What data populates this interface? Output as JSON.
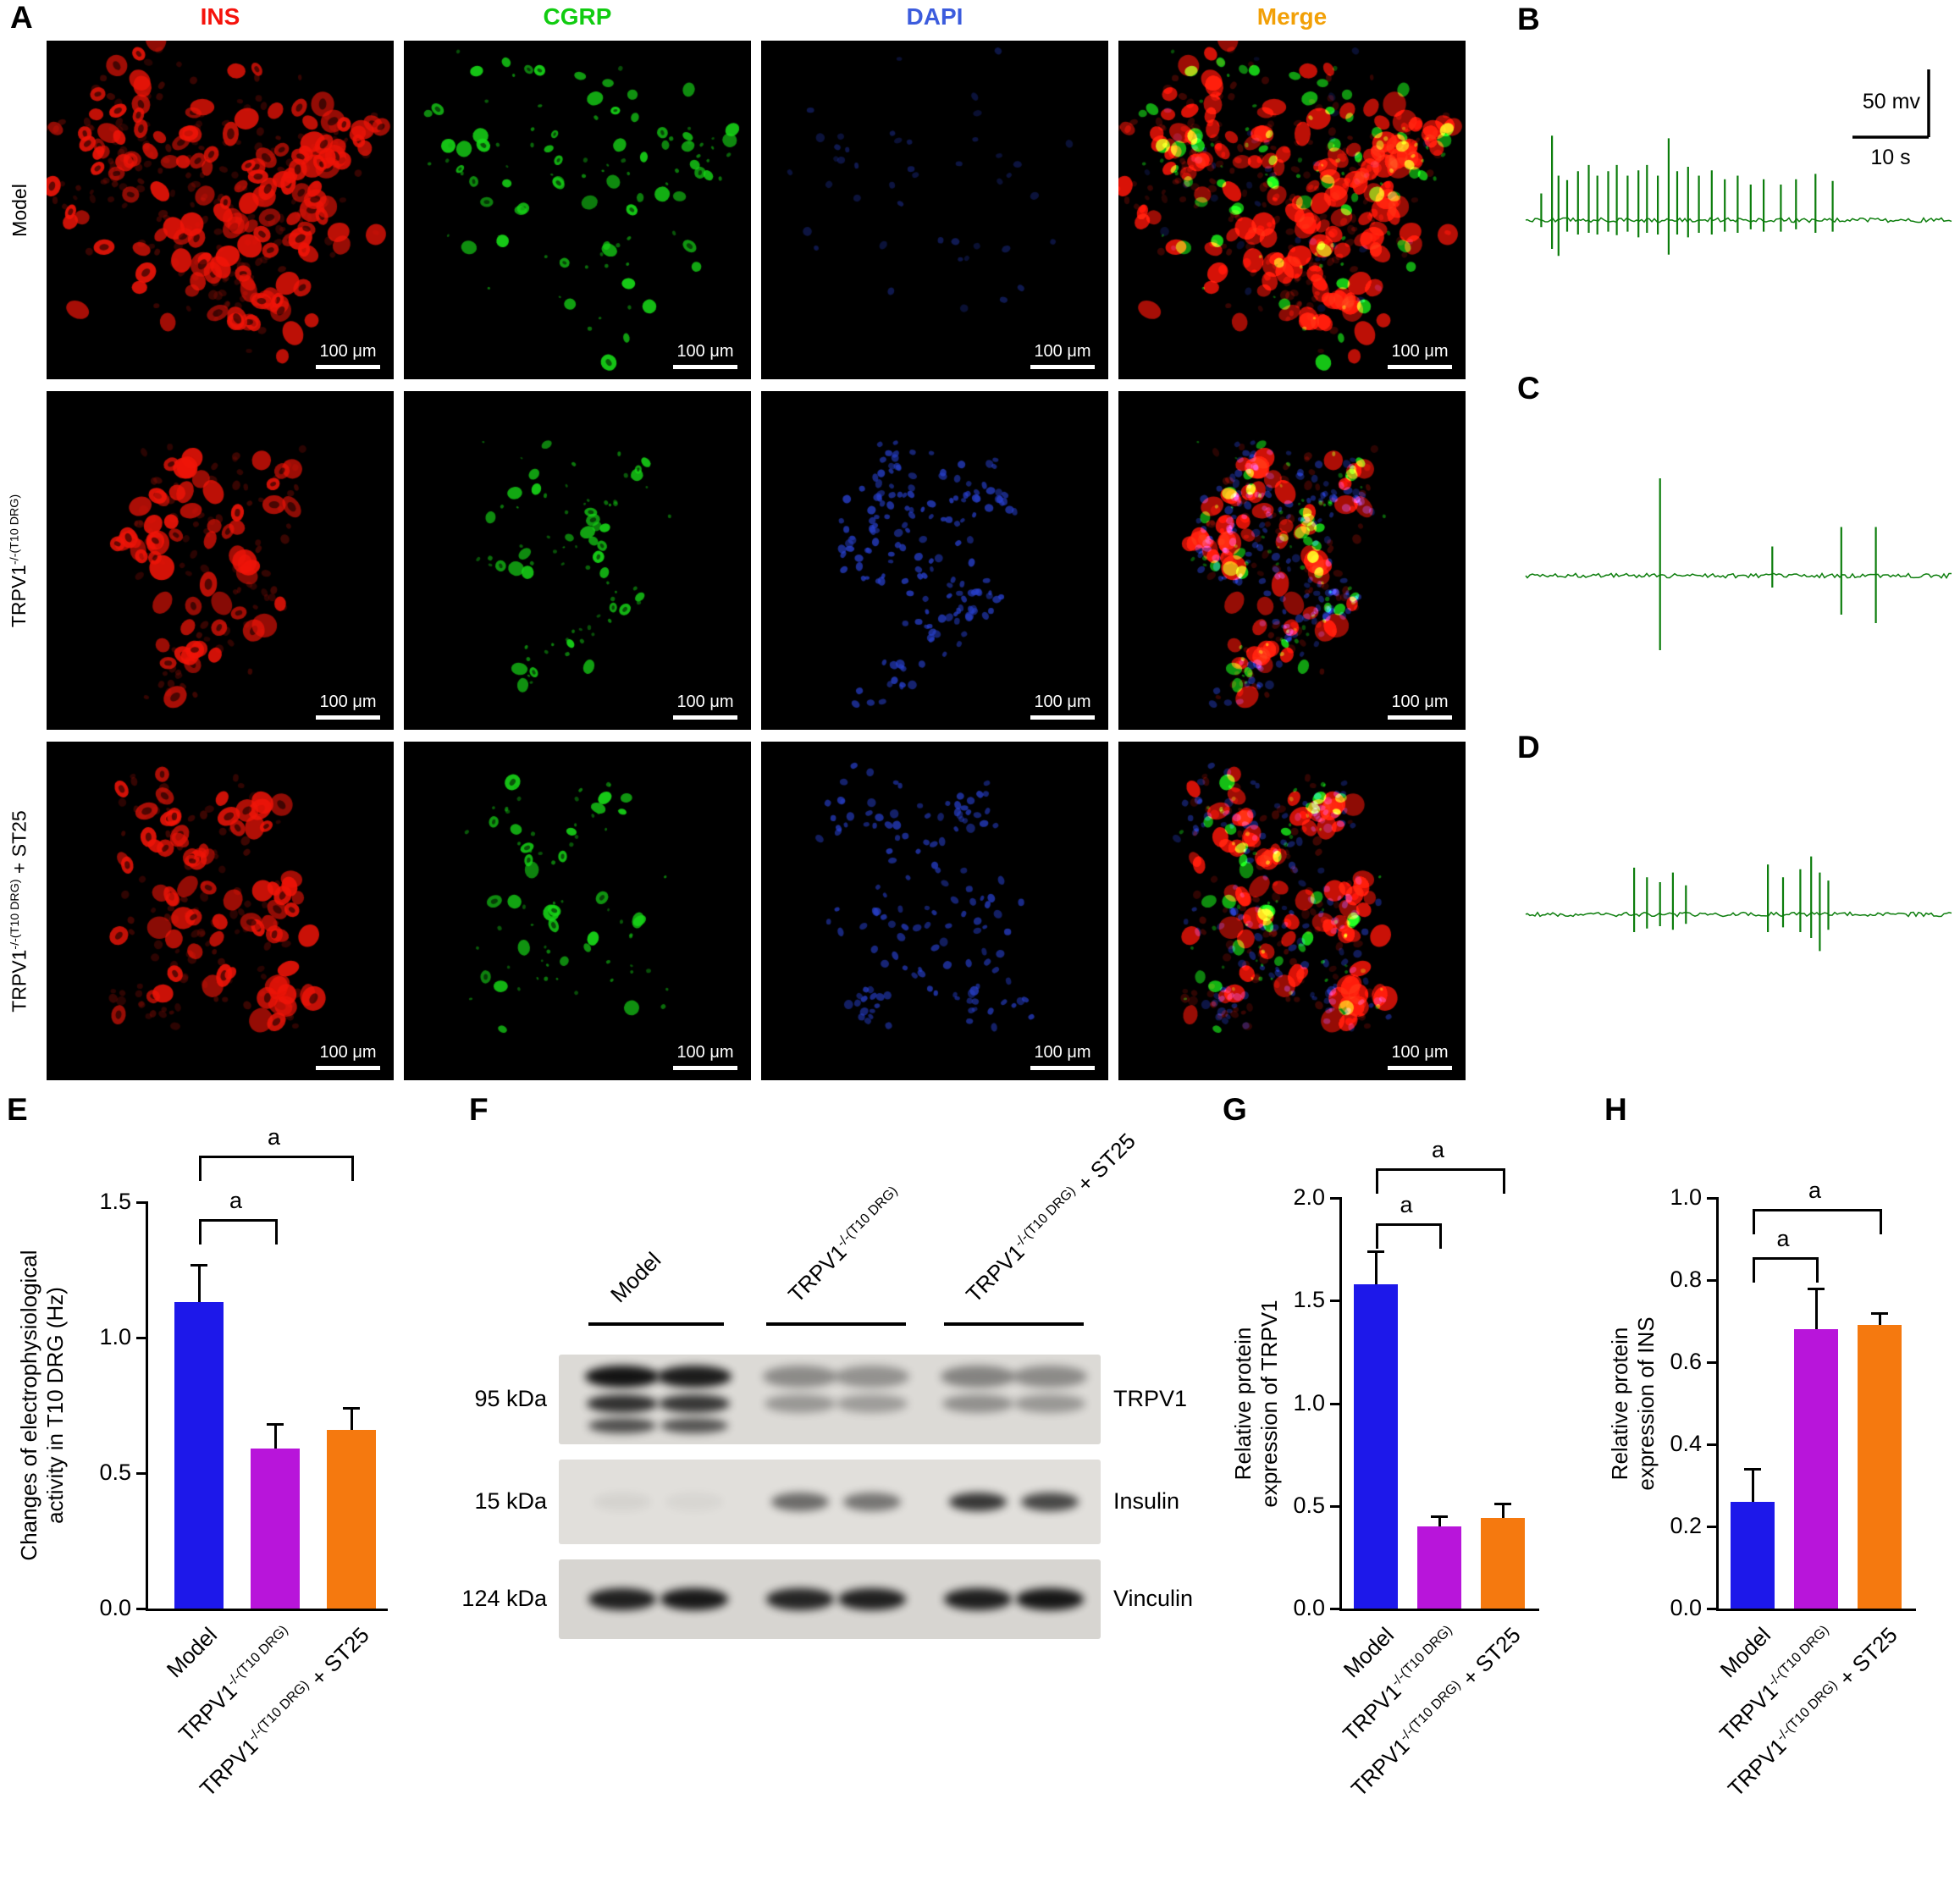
{
  "panelA": {
    "label": "A",
    "columns": [
      {
        "label": "INS",
        "color": "#f5130c"
      },
      {
        "label": "CGRP",
        "color": "#11cc11"
      },
      {
        "label": "DAPI",
        "color": "#3c5cdd"
      },
      {
        "label": "Merge",
        "color": "#f2a007"
      }
    ],
    "rows": [
      {
        "base": "Model",
        "sup": "",
        "suffix": ""
      },
      {
        "base": "TRPV1",
        "sup": "-/-(T10 DRG)",
        "suffix": ""
      },
      {
        "base": "TRPV1",
        "sup": "-/-(T10 DRG)",
        "suffix": " + ST25"
      }
    ],
    "scale_bar_label": "100 μm"
  },
  "traces": {
    "color": "#0c7d0c",
    "scale_v_label": "50 mv",
    "scale_h_label": "10 s",
    "B": {
      "label": "B",
      "spikes": [
        [
          0.04,
          0.3,
          0.12
        ],
        [
          0.065,
          0.95,
          0.5
        ],
        [
          0.08,
          0.5,
          0.62
        ],
        [
          0.1,
          0.45,
          0.2
        ],
        [
          0.125,
          0.55,
          0.25
        ],
        [
          0.15,
          0.62,
          0.22
        ],
        [
          0.17,
          0.5,
          0.25
        ],
        [
          0.195,
          0.55,
          0.2
        ],
        [
          0.215,
          0.62,
          0.26
        ],
        [
          0.24,
          0.5,
          0.2
        ],
        [
          0.265,
          0.56,
          0.3
        ],
        [
          0.285,
          0.62,
          0.22
        ],
        [
          0.31,
          0.5,
          0.25
        ],
        [
          0.335,
          0.92,
          0.6
        ],
        [
          0.355,
          0.55,
          0.25
        ],
        [
          0.38,
          0.6,
          0.3
        ],
        [
          0.405,
          0.5,
          0.22
        ],
        [
          0.435,
          0.56,
          0.25
        ],
        [
          0.465,
          0.46,
          0.2
        ],
        [
          0.495,
          0.5,
          0.22
        ],
        [
          0.525,
          0.4,
          0.16
        ],
        [
          0.555,
          0.46,
          0.2
        ],
        [
          0.595,
          0.4,
          0.2
        ],
        [
          0.63,
          0.46,
          0.16
        ],
        [
          0.675,
          0.52,
          0.22
        ],
        [
          0.715,
          0.44,
          0.2
        ]
      ]
    },
    "C": {
      "label": "C",
      "spikes": [
        [
          0.315,
          1.0,
          0.88
        ],
        [
          0.575,
          0.3,
          0.14
        ],
        [
          0.735,
          0.5,
          0.46
        ],
        [
          0.815,
          0.5,
          0.56
        ]
      ]
    },
    "D": {
      "label": "D",
      "spikes": [
        [
          0.255,
          0.58,
          0.3
        ],
        [
          0.285,
          0.46,
          0.24
        ],
        [
          0.315,
          0.4,
          0.2
        ],
        [
          0.345,
          0.52,
          0.26
        ],
        [
          0.375,
          0.36,
          0.16
        ],
        [
          0.565,
          0.62,
          0.3
        ],
        [
          0.6,
          0.46,
          0.22
        ],
        [
          0.64,
          0.56,
          0.3
        ],
        [
          0.665,
          0.72,
          0.4
        ],
        [
          0.685,
          0.52,
          0.62
        ],
        [
          0.705,
          0.42,
          0.26
        ]
      ]
    }
  },
  "blot": {
    "panel_label": "F",
    "groups": [
      {
        "base": "Model",
        "sup": "",
        "suffix": ""
      },
      {
        "base": "TRPV1",
        "sup": "-/-(T10 DRG)",
        "suffix": ""
      },
      {
        "base": "TRPV1",
        "sup": "-/-(T10 DRG)",
        "suffix": " + ST25"
      }
    ],
    "rows": [
      {
        "marker": "95 kDa",
        "protein": "TRPV1",
        "lanes": [
          0.97,
          0.93,
          0.38,
          0.35,
          0.42,
          0.38
        ]
      },
      {
        "marker": "15 kDa",
        "protein": "Insulin",
        "lanes": [
          0.05,
          0.04,
          0.55,
          0.5,
          0.8,
          0.72
        ]
      },
      {
        "marker": "124 kDa",
        "protein": "Vinculin",
        "lanes": [
          0.9,
          0.94,
          0.88,
          0.9,
          0.91,
          0.95
        ]
      }
    ]
  },
  "chart_data": [
    {
      "id": "E",
      "panel_label": "E",
      "type": "bar",
      "title": "",
      "ylabel": "Changes of electrophysiological activity in T10 DRG (Hz)",
      "ylabel_lines": [
        "Changes of electrophysiological",
        "activity in T10 DRG (Hz)"
      ],
      "categories": [
        "Model",
        "TRPV1-/-(T10 DRG)",
        "TRPV1-/-(T10 DRG) + ST25"
      ],
      "category_parts": [
        {
          "base": "Model",
          "sup": "",
          "suffix": ""
        },
        {
          "base": "TRPV1",
          "sup": "-/-(T10 DRG)",
          "suffix": ""
        },
        {
          "base": "TRPV1",
          "sup": "-/-(T10 DRG)",
          "suffix": " + ST25"
        }
      ],
      "values": [
        1.13,
        0.59,
        0.66
      ],
      "errors": [
        0.14,
        0.09,
        0.08
      ],
      "colors": [
        "#1d18ea",
        "#b815da",
        "#f5790f"
      ],
      "ylim": [
        0,
        1.5
      ],
      "yticks": [
        0,
        0.5,
        1.0,
        1.5
      ],
      "significance": [
        {
          "from": 0,
          "to": 1,
          "label": "a"
        },
        {
          "from": 0,
          "to": 2,
          "label": "a"
        }
      ]
    },
    {
      "id": "G",
      "panel_label": "G",
      "type": "bar",
      "title": "",
      "ylabel": "Relative protein expression of TRPV1",
      "ylabel_lines": [
        "Relative protein",
        "expression of TRPV1"
      ],
      "categories": [
        "Model",
        "TRPV1-/-(T10 DRG)",
        "TRPV1-/-(T10 DRG) + ST25"
      ],
      "category_parts": [
        {
          "base": "Model",
          "sup": "",
          "suffix": ""
        },
        {
          "base": "TRPV1",
          "sup": "-/-(T10 DRG)",
          "suffix": ""
        },
        {
          "base": "TRPV1",
          "sup": "-/-(T10 DRG)",
          "suffix": " + ST25"
        }
      ],
      "values": [
        1.58,
        0.4,
        0.44
      ],
      "errors": [
        0.16,
        0.05,
        0.07
      ],
      "colors": [
        "#1d18ea",
        "#b815da",
        "#f5790f"
      ],
      "ylim": [
        0,
        2.0
      ],
      "yticks": [
        0,
        0.5,
        1.0,
        1.5,
        2.0
      ],
      "significance": [
        {
          "from": 0,
          "to": 1,
          "label": "a"
        },
        {
          "from": 0,
          "to": 2,
          "label": "a"
        }
      ]
    },
    {
      "id": "H",
      "panel_label": "H",
      "type": "bar",
      "title": "",
      "ylabel": "Relative protein expression of INS",
      "ylabel_lines": [
        "Relative protein",
        "expression of INS"
      ],
      "categories": [
        "Model",
        "TRPV1-/-(T10 DRG)",
        "TRPV1-/-(T10 DRG) + ST25"
      ],
      "category_parts": [
        {
          "base": "Model",
          "sup": "",
          "suffix": ""
        },
        {
          "base": "TRPV1",
          "sup": "-/-(T10 DRG)",
          "suffix": ""
        },
        {
          "base": "TRPV1",
          "sup": "-/-(T10 DRG)",
          "suffix": " + ST25"
        }
      ],
      "values": [
        0.26,
        0.68,
        0.69
      ],
      "errors": [
        0.08,
        0.1,
        0.03
      ],
      "colors": [
        "#1d18ea",
        "#b815da",
        "#f5790f"
      ],
      "ylim": [
        0,
        1.0
      ],
      "yticks": [
        0,
        0.2,
        0.4,
        0.6,
        0.8,
        1.0
      ],
      "significance": [
        {
          "from": 0,
          "to": 1,
          "label": "a"
        },
        {
          "from": 0,
          "to": 2,
          "label": "a"
        }
      ]
    }
  ]
}
